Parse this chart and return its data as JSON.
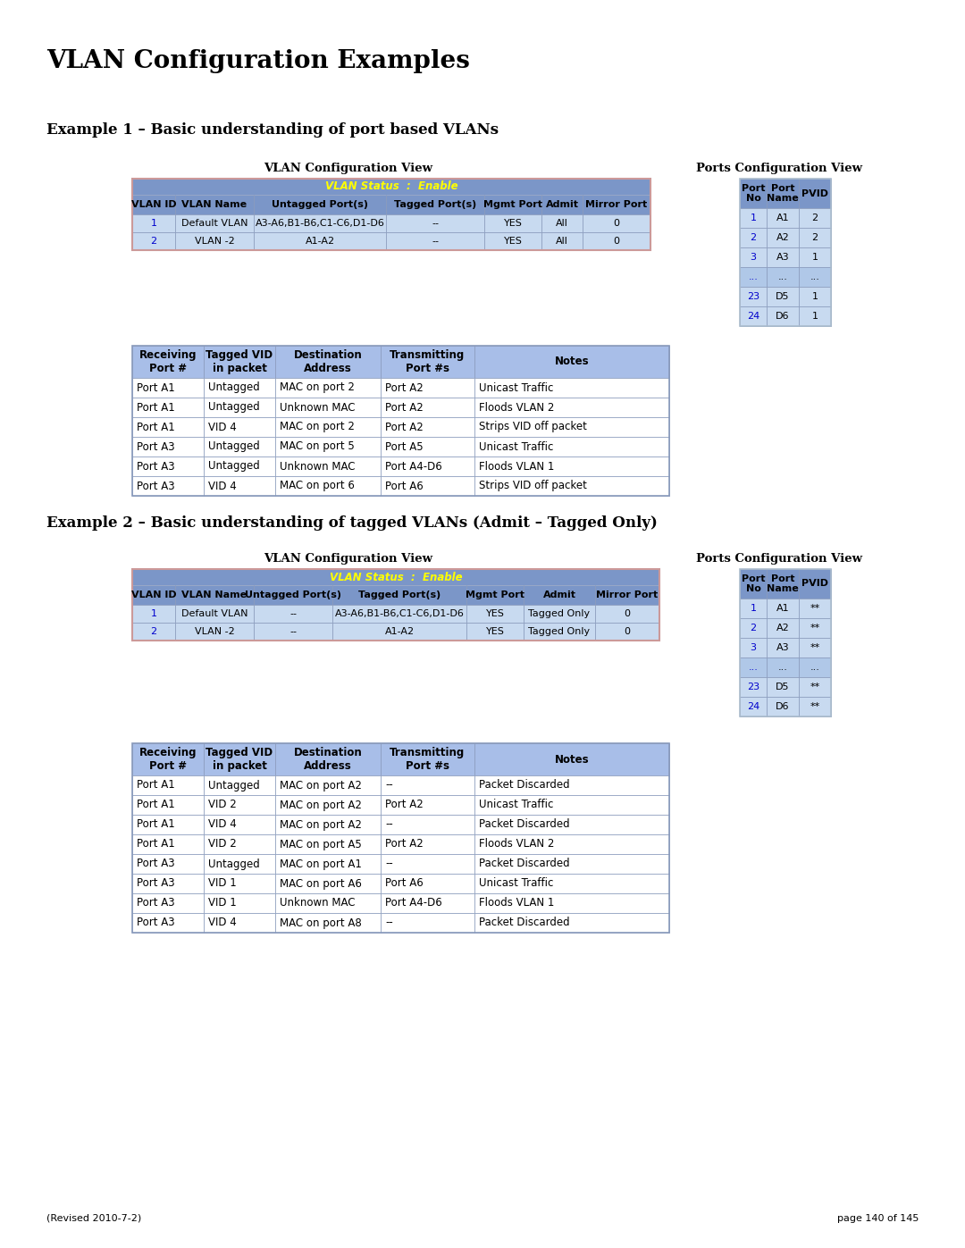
{
  "title": "VLAN Configuration Examples",
  "example1_title": "Example 1 – Basic understanding of port based VLANs",
  "example2_title": "Example 2 – Basic understanding of tagged VLANs (Admit – Tagged Only)",
  "vlan_config_view_label": "VLAN Configuration View",
  "ports_config_view_label": "Ports Configuration View",
  "vlan_status_label": "VLAN Status  :  Enable",
  "vlan_table1_headers": [
    "VLAN ID",
    "VLAN Name",
    "Untagged Port(s)",
    "Tagged Port(s)",
    "Mgmt Port",
    "Admit",
    "Mirror Port"
  ],
  "vlan_table1_rows": [
    [
      "1",
      "Default VLAN",
      "A3-A6,B1-B6,C1-C6,D1-D6",
      "--",
      "YES",
      "All",
      "0"
    ],
    [
      "2",
      "VLAN -2",
      "A1-A2",
      "--",
      "YES",
      "All",
      "0"
    ]
  ],
  "ports_table1_headers": [
    "Port\nNo",
    "Port\nName",
    "PVID"
  ],
  "ports_table1_rows": [
    [
      "1",
      "A1",
      "2"
    ],
    [
      "2",
      "A2",
      "2"
    ],
    [
      "3",
      "A3",
      "1"
    ],
    [
      "...",
      "...",
      "..."
    ],
    [
      "23",
      "D5",
      "1"
    ],
    [
      "24",
      "D6",
      "1"
    ]
  ],
  "detail_table1_headers": [
    "Receiving\nPort #",
    "Tagged VID\nin packet",
    "Destination\nAddress",
    "Transmitting\nPort #s",
    "Notes"
  ],
  "detail_table1_rows": [
    [
      "Port A1",
      "Untagged",
      "MAC on port 2",
      "Port A2",
      "Unicast Traffic"
    ],
    [
      "Port A1",
      "Untagged",
      "Unknown MAC",
      "Port A2",
      "Floods VLAN 2"
    ],
    [
      "Port A1",
      "VID 4",
      "MAC on port 2",
      "Port A2",
      "Strips VID off packet"
    ],
    [
      "Port A3",
      "Untagged",
      "MAC on port 5",
      "Port A5",
      "Unicast Traffic"
    ],
    [
      "Port A3",
      "Untagged",
      "Unknown MAC",
      "Port A4-D6",
      "Floods VLAN 1"
    ],
    [
      "Port A3",
      "VID 4",
      "MAC on port 6",
      "Port A6",
      "Strips VID off packet"
    ]
  ],
  "vlan_table2_headers": [
    "VLAN ID",
    "VLAN Name",
    "Untagged Port(s)",
    "Tagged Port(s)",
    "Mgmt Port",
    "Admit",
    "Mirror Port"
  ],
  "vlan_table2_rows": [
    [
      "1",
      "Default VLAN",
      "--",
      "A3-A6,B1-B6,C1-C6,D1-D6",
      "YES",
      "Tagged Only",
      "0"
    ],
    [
      "2",
      "VLAN -2",
      "--",
      "A1-A2",
      "YES",
      "Tagged Only",
      "0"
    ]
  ],
  "ports_table2_headers": [
    "Port\nNo",
    "Port\nName",
    "PVID"
  ],
  "ports_table2_rows": [
    [
      "1",
      "A1",
      "**"
    ],
    [
      "2",
      "A2",
      "**"
    ],
    [
      "3",
      "A3",
      "**"
    ],
    [
      "...",
      "...",
      "..."
    ],
    [
      "23",
      "D5",
      "**"
    ],
    [
      "24",
      "D6",
      "**"
    ]
  ],
  "detail_table2_headers": [
    "Receiving\nPort #",
    "Tagged VID\nin packet",
    "Destination\nAddress",
    "Transmitting\nPort #s",
    "Notes"
  ],
  "detail_table2_rows": [
    [
      "Port A1",
      "Untagged",
      "MAC on port A2",
      "--",
      "Packet Discarded"
    ],
    [
      "Port A1",
      "VID 2",
      "MAC on port A2",
      "Port A2",
      "Unicast Traffic"
    ],
    [
      "Port A1",
      "VID 4",
      "MAC on port A2",
      "--",
      "Packet Discarded"
    ],
    [
      "Port A1",
      "VID 2",
      "MAC on port A5",
      "Port A2",
      "Floods VLAN 2"
    ],
    [
      "Port A3",
      "Untagged",
      "MAC on port A1",
      "--",
      "Packet Discarded"
    ],
    [
      "Port A3",
      "VID 1",
      "MAC on port A6",
      "Port A6",
      "Unicast Traffic"
    ],
    [
      "Port A3",
      "VID 1",
      "Unknown MAC",
      "Port A4-D6",
      "Floods VLAN 1"
    ],
    [
      "Port A3",
      "VID 4",
      "MAC on port A8",
      "--",
      "Packet Discarded"
    ]
  ],
  "footer_left": "(Revised 2010-7-2)",
  "footer_right": "page 140 of 145",
  "color_header_dark": "#7b96c8",
  "color_header_medium": "#a8bee8",
  "color_row_light": "#c8daf0",
  "color_vlan_status": "#7b96c8",
  "color_yellow_text": "#ffff00",
  "color_blue_link": "#0000cc",
  "color_border": "#8899bb",
  "color_outer_border": "#cc9999",
  "color_ports_row": "#c8daf0",
  "color_ports_row_dots": "#b0c8e8",
  "color_ports_outer": "#aabbcc"
}
